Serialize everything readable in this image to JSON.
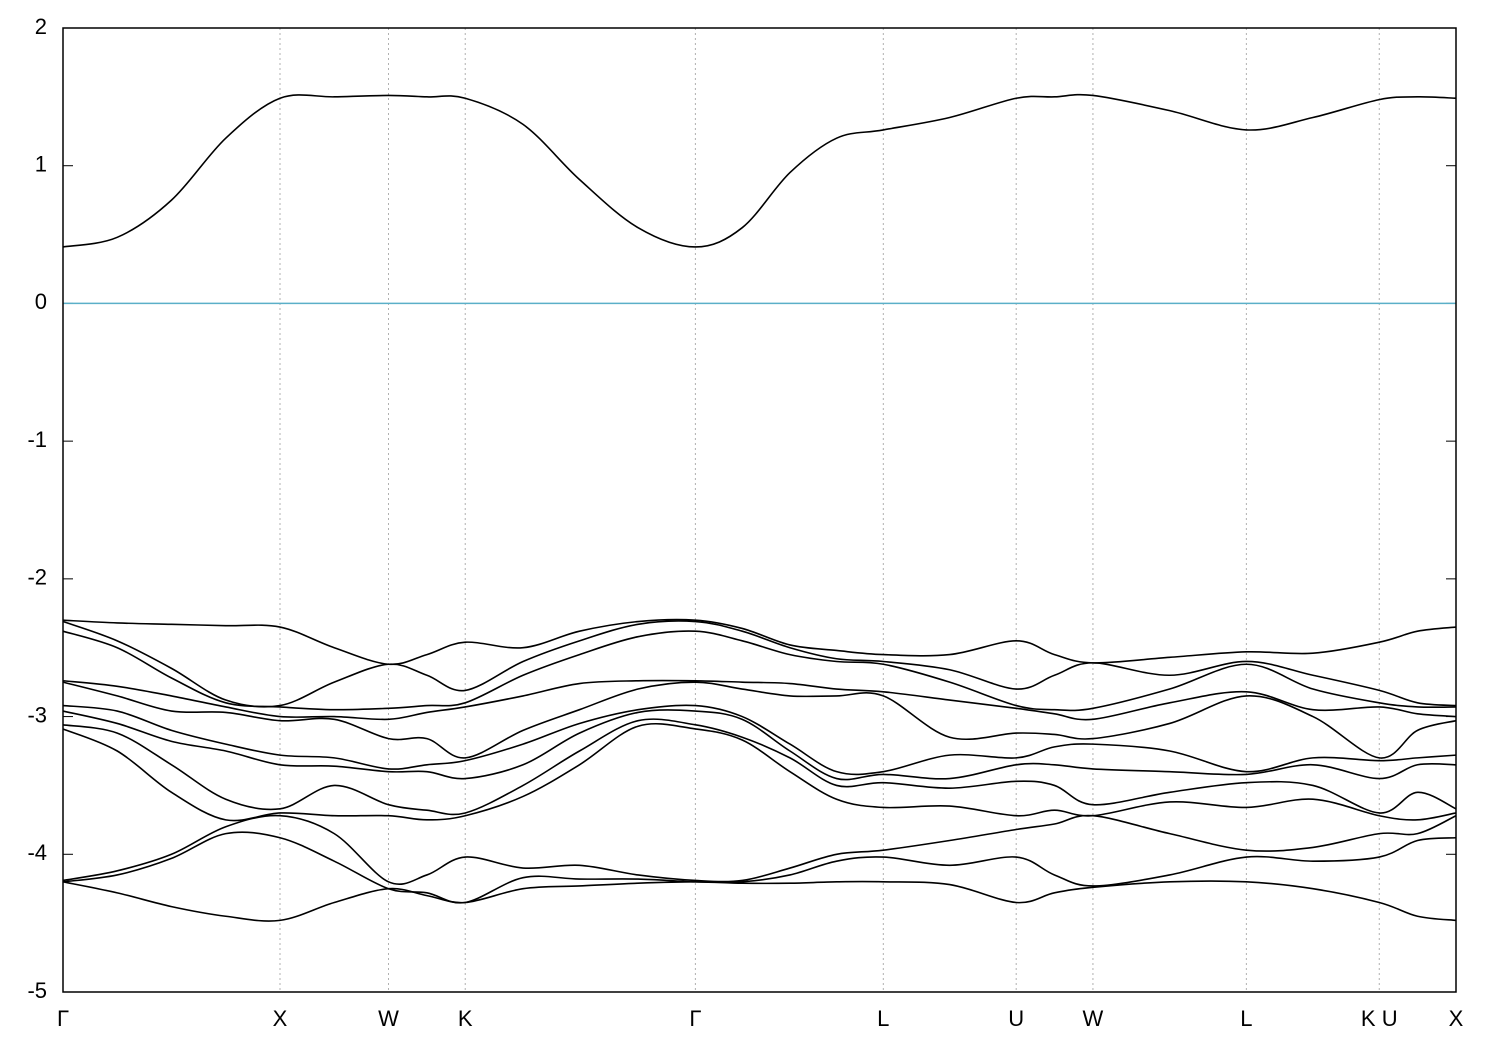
{
  "chart_data": {
    "type": "line",
    "x": [
      0,
      0.25,
      0.5,
      0.75,
      1,
      1.25,
      1.5,
      1.677,
      1.8536,
      2.12,
      2.38,
      2.65,
      2.9142,
      3.13,
      3.35,
      3.565,
      3.7802,
      4.086,
      4.3926,
      4.569,
      4.7462,
      5.1,
      5.4533,
      5.76,
      6.0657,
      6.242,
      6.4193
    ],
    "series": [
      {
        "color": "#000000",
        "values": [
          0.41,
          0.48,
          0.75,
          1.2,
          1.49,
          1.5,
          1.51,
          1.5,
          1.49,
          1.3,
          0.9,
          0.55,
          0.41,
          0.55,
          0.95,
          1.2,
          1.26,
          1.35,
          1.49,
          1.5,
          1.51,
          1.4,
          1.26,
          1.35,
          1.48,
          1.5,
          1.49
        ]
      },
      {
        "color": "#000000",
        "values": [
          -2.3,
          -2.32,
          -2.33,
          -2.34,
          -2.35,
          -2.5,
          -2.62,
          -2.55,
          -2.46,
          -2.5,
          -2.38,
          -2.31,
          -2.3,
          -2.36,
          -2.48,
          -2.52,
          -2.55,
          -2.55,
          -2.45,
          -2.55,
          -2.61,
          -2.57,
          -2.53,
          -2.54,
          -2.46,
          -2.38,
          -2.35
        ]
      },
      {
        "color": "#000000",
        "values": [
          -2.31,
          -2.45,
          -2.65,
          -2.88,
          -2.92,
          -2.75,
          -2.62,
          -2.7,
          -2.81,
          -2.6,
          -2.45,
          -2.33,
          -2.31,
          -2.38,
          -2.5,
          -2.58,
          -2.6,
          -2.66,
          -2.8,
          -2.7,
          -2.61,
          -2.7,
          -2.6,
          -2.7,
          -2.81,
          -2.9,
          -2.92
        ]
      },
      {
        "color": "#000000",
        "values": [
          -2.38,
          -2.5,
          -2.72,
          -2.9,
          -2.93,
          -2.95,
          -2.94,
          -2.92,
          -2.9,
          -2.7,
          -2.55,
          -2.42,
          -2.38,
          -2.45,
          -2.55,
          -2.6,
          -2.62,
          -2.75,
          -2.92,
          -2.95,
          -2.94,
          -2.8,
          -2.62,
          -2.8,
          -2.9,
          -2.93,
          -2.93
        ]
      },
      {
        "color": "#000000",
        "values": [
          -2.74,
          -2.78,
          -2.85,
          -2.93,
          -3.0,
          -3.0,
          -3.02,
          -2.97,
          -2.93,
          -2.85,
          -2.76,
          -2.74,
          -2.74,
          -2.75,
          -2.76,
          -2.8,
          -2.82,
          -2.88,
          -2.94,
          -2.98,
          -3.02,
          -2.9,
          -2.82,
          -2.95,
          -2.93,
          -2.98,
          -3.0
        ]
      },
      {
        "color": "#000000",
        "values": [
          -2.75,
          -2.85,
          -2.96,
          -2.97,
          -3.03,
          -3.02,
          -3.16,
          -3.16,
          -3.3,
          -3.1,
          -2.95,
          -2.8,
          -2.75,
          -2.8,
          -2.85,
          -2.85,
          -2.85,
          -3.15,
          -3.12,
          -3.13,
          -3.16,
          -3.05,
          -2.85,
          -3.0,
          -3.3,
          -3.1,
          -3.03
        ]
      },
      {
        "color": "#000000",
        "values": [
          -2.92,
          -2.96,
          -3.1,
          -3.2,
          -3.28,
          -3.3,
          -3.38,
          -3.35,
          -3.32,
          -3.2,
          -3.05,
          -2.95,
          -2.92,
          -3.0,
          -3.2,
          -3.4,
          -3.4,
          -3.28,
          -3.3,
          -3.22,
          -3.2,
          -3.25,
          -3.4,
          -3.3,
          -3.32,
          -3.3,
          -3.28
        ]
      },
      {
        "color": "#000000",
        "values": [
          -2.96,
          -3.05,
          -3.18,
          -3.25,
          -3.35,
          -3.36,
          -3.4,
          -3.4,
          -3.45,
          -3.35,
          -3.12,
          -2.97,
          -2.96,
          -3.02,
          -3.25,
          -3.45,
          -3.42,
          -3.45,
          -3.35,
          -3.35,
          -3.38,
          -3.4,
          -3.42,
          -3.35,
          -3.45,
          -3.35,
          -3.35
        ]
      },
      {
        "color": "#000000",
        "values": [
          -3.06,
          -3.12,
          -3.35,
          -3.6,
          -3.67,
          -3.5,
          -3.64,
          -3.68,
          -3.7,
          -3.5,
          -3.25,
          -3.03,
          -3.06,
          -3.15,
          -3.3,
          -3.5,
          -3.48,
          -3.52,
          -3.47,
          -3.5,
          -3.64,
          -3.55,
          -3.48,
          -3.5,
          -3.7,
          -3.55,
          -3.67
        ]
      },
      {
        "color": "#000000",
        "values": [
          -3.09,
          -3.25,
          -3.55,
          -3.75,
          -3.7,
          -3.72,
          -3.72,
          -3.75,
          -3.72,
          -3.58,
          -3.35,
          -3.07,
          -3.09,
          -3.17,
          -3.4,
          -3.6,
          -3.66,
          -3.65,
          -3.72,
          -3.68,
          -3.72,
          -3.62,
          -3.66,
          -3.6,
          -3.72,
          -3.75,
          -3.7
        ]
      },
      {
        "color": "#000000",
        "values": [
          -4.19,
          -4.12,
          -4.0,
          -3.8,
          -3.72,
          -3.85,
          -4.2,
          -4.15,
          -4.02,
          -4.1,
          -4.08,
          -4.15,
          -4.19,
          -4.19,
          -4.1,
          -4.0,
          -3.97,
          -3.9,
          -3.82,
          -3.78,
          -3.72,
          -3.85,
          -3.97,
          -3.95,
          -3.85,
          -3.85,
          -3.72
        ]
      },
      {
        "color": "#000000",
        "values": [
          -4.2,
          -4.15,
          -4.03,
          -3.85,
          -3.88,
          -4.05,
          -4.25,
          -4.28,
          -4.35,
          -4.17,
          -4.18,
          -4.18,
          -4.2,
          -4.2,
          -4.15,
          -4.05,
          -4.02,
          -4.08,
          -4.02,
          -4.15,
          -4.23,
          -4.15,
          -4.02,
          -4.05,
          -4.02,
          -3.9,
          -3.88
        ]
      },
      {
        "color": "#000000",
        "values": [
          -4.2,
          -4.28,
          -4.38,
          -4.45,
          -4.48,
          -4.35,
          -4.25,
          -4.3,
          -4.35,
          -4.25,
          -4.23,
          -4.21,
          -4.2,
          -4.21,
          -4.21,
          -4.2,
          -4.2,
          -4.22,
          -4.35,
          -4.28,
          -4.24,
          -4.2,
          -4.2,
          -4.25,
          -4.35,
          -4.45,
          -4.48
        ]
      }
    ],
    "reference_lines": [
      {
        "value": 0,
        "color": "#5aafc8"
      }
    ],
    "xlim": [
      0,
      6.4193
    ],
    "xticks": [
      {
        "value": 0,
        "label": "Γ"
      },
      {
        "value": 1,
        "label": "X"
      },
      {
        "value": 1.5,
        "label": "W"
      },
      {
        "value": 1.8536,
        "label": "K"
      },
      {
        "value": 2.9142,
        "label": "Γ"
      },
      {
        "value": 3.7802,
        "label": "L"
      },
      {
        "value": 4.3926,
        "label": "U"
      },
      {
        "value": 4.7462,
        "label": "W"
      },
      {
        "value": 5.4533,
        "label": "L"
      },
      {
        "value": 6.0657,
        "label": "K U"
      },
      {
        "value": 6.4193,
        "label": "X"
      }
    ],
    "ylim": [
      -5,
      2
    ],
    "yticks": [
      2,
      1,
      0,
      -1,
      -2,
      -3,
      -4,
      -5
    ],
    "grid": true
  }
}
